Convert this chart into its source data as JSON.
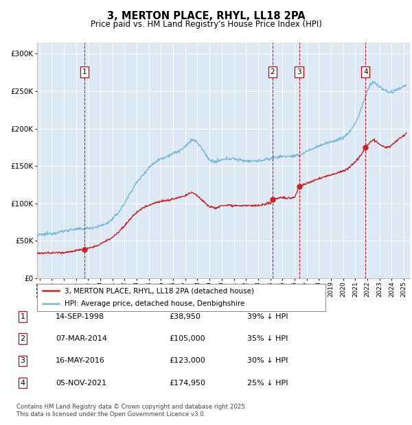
{
  "title": "3, MERTON PLACE, RHYL, LL18 2PA",
  "subtitle": "Price paid vs. HM Land Registry's House Price Index (HPI)",
  "ylim": [
    0,
    315000
  ],
  "yticks": [
    0,
    50000,
    100000,
    150000,
    200000,
    250000,
    300000
  ],
  "xlim_start": 1994.8,
  "xlim_end": 2025.5,
  "background_color": "#dce9f5",
  "grid_color": "#ffffff",
  "hpi_color": "#7ab8d9",
  "price_color": "#cc2222",
  "sales": [
    {
      "num": 1,
      "date_dec": 1998.71,
      "price": 38950,
      "label": "1"
    },
    {
      "num": 2,
      "date_dec": 2014.18,
      "price": 105000,
      "label": "2"
    },
    {
      "num": 3,
      "date_dec": 2016.38,
      "price": 123000,
      "label": "3"
    },
    {
      "num": 4,
      "date_dec": 2021.84,
      "price": 174950,
      "label": "4"
    }
  ],
  "table_rows": [
    {
      "num": "1",
      "date": "14-SEP-1998",
      "price": "£38,950",
      "pct": "39% ↓ HPI"
    },
    {
      "num": "2",
      "date": "07-MAR-2014",
      "price": "£105,000",
      "pct": "35% ↓ HPI"
    },
    {
      "num": "3",
      "date": "16-MAY-2016",
      "price": "£123,000",
      "pct": "30% ↓ HPI"
    },
    {
      "num": "4",
      "date": "05-NOV-2021",
      "price": "£174,950",
      "pct": "25% ↓ HPI"
    }
  ],
  "footnote": "Contains HM Land Registry data © Crown copyright and database right 2025.\nThis data is licensed under the Open Government Licence v3.0.",
  "legend1": "3, MERTON PLACE, RHYL, LL18 2PA (detached house)",
  "legend2": "HPI: Average price, detached house, Denbighshire",
  "hpi_anchors": [
    [
      1994.8,
      57000
    ],
    [
      1995.0,
      58000
    ],
    [
      1995.5,
      59000
    ],
    [
      1996.0,
      60000
    ],
    [
      1997.0,
      63000
    ],
    [
      1997.5,
      65000
    ],
    [
      1998.0,
      65500
    ],
    [
      1998.5,
      66000
    ],
    [
      1999.0,
      67000
    ],
    [
      1999.5,
      68000
    ],
    [
      2000.0,
      70000
    ],
    [
      2000.5,
      73000
    ],
    [
      2001.0,
      79000
    ],
    [
      2001.5,
      88000
    ],
    [
      2002.0,
      100000
    ],
    [
      2002.5,
      115000
    ],
    [
      2003.0,
      128000
    ],
    [
      2003.5,
      138000
    ],
    [
      2004.0,
      148000
    ],
    [
      2004.5,
      155000
    ],
    [
      2005.0,
      160000
    ],
    [
      2005.5,
      163000
    ],
    [
      2006.0,
      167000
    ],
    [
      2006.5,
      170000
    ],
    [
      2007.0,
      175000
    ],
    [
      2007.3,
      182000
    ],
    [
      2007.6,
      185000
    ],
    [
      2007.9,
      183000
    ],
    [
      2008.3,
      175000
    ],
    [
      2008.7,
      165000
    ],
    [
      2009.0,
      158000
    ],
    [
      2009.5,
      155000
    ],
    [
      2010.0,
      158000
    ],
    [
      2010.5,
      160000
    ],
    [
      2011.0,
      160000
    ],
    [
      2011.5,
      158000
    ],
    [
      2012.0,
      157000
    ],
    [
      2012.5,
      157000
    ],
    [
      2013.0,
      157000
    ],
    [
      2013.5,
      158000
    ],
    [
      2014.0,
      160000
    ],
    [
      2014.5,
      162000
    ],
    [
      2015.0,
      163000
    ],
    [
      2015.5,
      163000
    ],
    [
      2016.0,
      163000
    ],
    [
      2016.5,
      165000
    ],
    [
      2017.0,
      170000
    ],
    [
      2017.5,
      173000
    ],
    [
      2018.0,
      177000
    ],
    [
      2018.5,
      180000
    ],
    [
      2019.0,
      182000
    ],
    [
      2019.5,
      185000
    ],
    [
      2020.0,
      188000
    ],
    [
      2020.5,
      195000
    ],
    [
      2021.0,
      207000
    ],
    [
      2021.3,
      218000
    ],
    [
      2021.6,
      232000
    ],
    [
      2021.9,
      245000
    ],
    [
      2022.1,
      255000
    ],
    [
      2022.3,
      260000
    ],
    [
      2022.5,
      262000
    ],
    [
      2022.7,
      260000
    ],
    [
      2022.9,
      257000
    ],
    [
      2023.1,
      255000
    ],
    [
      2023.3,
      252000
    ],
    [
      2023.6,
      250000
    ],
    [
      2023.9,
      248000
    ],
    [
      2024.2,
      250000
    ],
    [
      2024.5,
      252000
    ],
    [
      2024.8,
      255000
    ],
    [
      2025.0,
      257000
    ],
    [
      2025.2,
      258000
    ]
  ],
  "price_anchors": [
    [
      1994.8,
      33500
    ],
    [
      1995.0,
      33500
    ],
    [
      1995.5,
      33800
    ],
    [
      1996.0,
      34000
    ],
    [
      1997.0,
      34500
    ],
    [
      1997.5,
      35500
    ],
    [
      1998.0,
      37000
    ],
    [
      1998.5,
      38500
    ],
    [
      1998.71,
      38950
    ],
    [
      1999.0,
      40000
    ],
    [
      1999.5,
      42000
    ],
    [
      2000.0,
      46000
    ],
    [
      2000.5,
      50000
    ],
    [
      2001.0,
      55000
    ],
    [
      2001.5,
      62000
    ],
    [
      2002.0,
      70000
    ],
    [
      2002.5,
      80000
    ],
    [
      2003.0,
      88000
    ],
    [
      2003.5,
      94000
    ],
    [
      2004.0,
      98000
    ],
    [
      2004.5,
      101000
    ],
    [
      2005.0,
      103000
    ],
    [
      2005.5,
      104000
    ],
    [
      2006.0,
      106000
    ],
    [
      2006.5,
      108000
    ],
    [
      2007.0,
      110000
    ],
    [
      2007.3,
      113000
    ],
    [
      2007.6,
      115000
    ],
    [
      2007.9,
      112000
    ],
    [
      2008.3,
      106000
    ],
    [
      2008.7,
      100000
    ],
    [
      2009.0,
      96000
    ],
    [
      2009.5,
      94000
    ],
    [
      2010.0,
      97000
    ],
    [
      2010.5,
      98000
    ],
    [
      2011.0,
      97500
    ],
    [
      2011.5,
      97000
    ],
    [
      2012.0,
      97000
    ],
    [
      2012.5,
      97000
    ],
    [
      2013.0,
      97000
    ],
    [
      2013.5,
      98000
    ],
    [
      2014.0,
      101000
    ],
    [
      2014.18,
      105000
    ],
    [
      2014.5,
      107000
    ],
    [
      2015.0,
      108000
    ],
    [
      2015.5,
      107000
    ],
    [
      2016.0,
      108000
    ],
    [
      2016.38,
      123000
    ],
    [
      2016.7,
      125000
    ],
    [
      2017.0,
      127000
    ],
    [
      2017.5,
      130000
    ],
    [
      2018.0,
      133000
    ],
    [
      2018.5,
      136000
    ],
    [
      2019.0,
      138000
    ],
    [
      2019.5,
      141000
    ],
    [
      2020.0,
      143000
    ],
    [
      2020.5,
      148000
    ],
    [
      2021.0,
      156000
    ],
    [
      2021.5,
      165000
    ],
    [
      2021.84,
      174950
    ],
    [
      2022.0,
      178000
    ],
    [
      2022.3,
      183000
    ],
    [
      2022.5,
      185000
    ],
    [
      2022.7,
      183000
    ],
    [
      2022.9,
      180000
    ],
    [
      2023.1,
      178000
    ],
    [
      2023.4,
      175000
    ],
    [
      2023.7,
      175000
    ],
    [
      2024.0,
      178000
    ],
    [
      2024.3,
      182000
    ],
    [
      2024.6,
      186000
    ],
    [
      2024.9,
      190000
    ],
    [
      2025.2,
      193000
    ]
  ]
}
